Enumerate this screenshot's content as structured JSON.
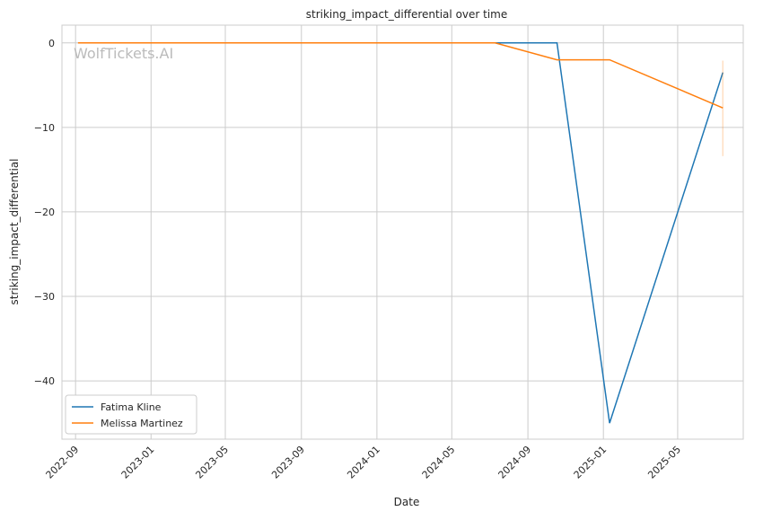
{
  "chart_data": {
    "type": "line",
    "title": "striking_impact_differential over time",
    "xlabel": "Date",
    "ylabel": "striking_impact_differential",
    "watermark": "WolfTickets.AI",
    "x_ticks": [
      "2022-09",
      "2023-01",
      "2023-05",
      "2023-09",
      "2024-01",
      "2024-05",
      "2024-09",
      "2025-01",
      "2025-05"
    ],
    "y_ticks": [
      0,
      -10,
      -20,
      -30,
      -40
    ],
    "xlim": [
      "2022-08-10",
      "2025-08-15"
    ],
    "ylim": [
      -46.9,
      2.1
    ],
    "grid": true,
    "legend_position": "lower-left",
    "series": [
      {
        "name": "Fatima Kline",
        "color": "#1f77b4",
        "x": [
          "2022-09-05",
          "2024-10-18",
          "2025-01-11",
          "2025-07-13"
        ],
        "y": [
          0,
          0,
          -45,
          -3.5
        ]
      },
      {
        "name": "Melissa Martinez",
        "color": "#ff7f0e",
        "x": [
          "2022-09-05",
          "2024-07-10",
          "2024-10-18",
          "2025-01-11",
          "2025-07-13"
        ],
        "y": [
          0,
          0,
          -2,
          -2,
          -7.7
        ],
        "interval_at_last": [
          -2.1,
          -13.4
        ]
      }
    ]
  }
}
